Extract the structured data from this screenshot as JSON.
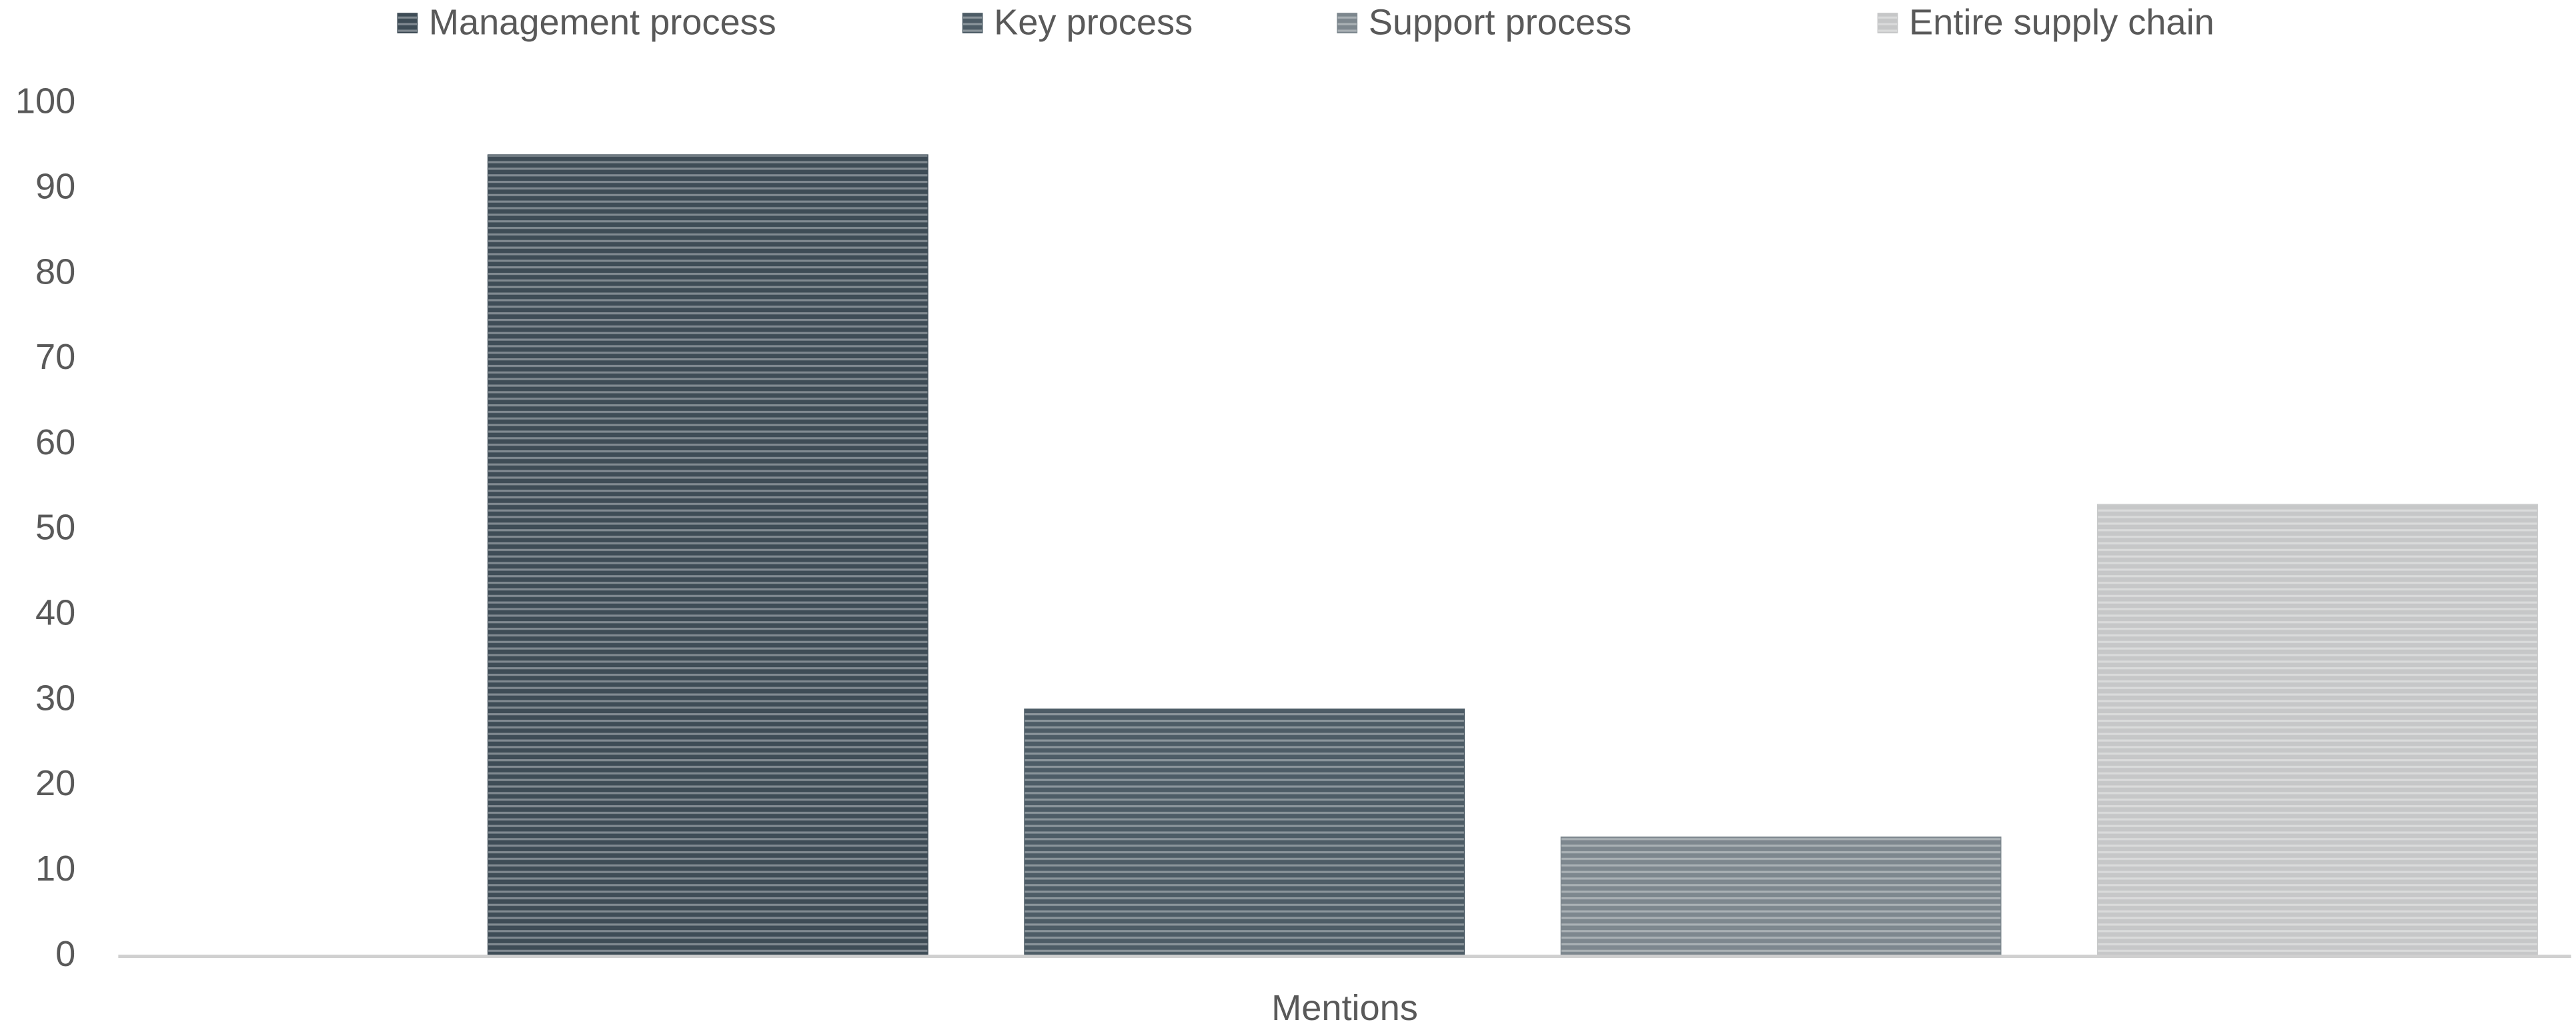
{
  "chart_data": {
    "type": "bar",
    "categories": [
      "Mentions"
    ],
    "series": [
      {
        "name": "Management process",
        "color": "#3e4c56",
        "values": [
          94
        ]
      },
      {
        "name": "Key process",
        "color": "#4d5c66",
        "values": [
          29
        ]
      },
      {
        "name": "Support process",
        "color": "#7d878e",
        "values": [
          14
        ]
      },
      {
        "name": "Entire supply chain",
        "color": "#c6c7c8",
        "values": [
          53
        ]
      }
    ],
    "ylim": [
      0,
      100
    ],
    "yticks": [
      0,
      10,
      20,
      30,
      40,
      50,
      60,
      70,
      80,
      90,
      100
    ],
    "grid": false,
    "legend": "top"
  }
}
